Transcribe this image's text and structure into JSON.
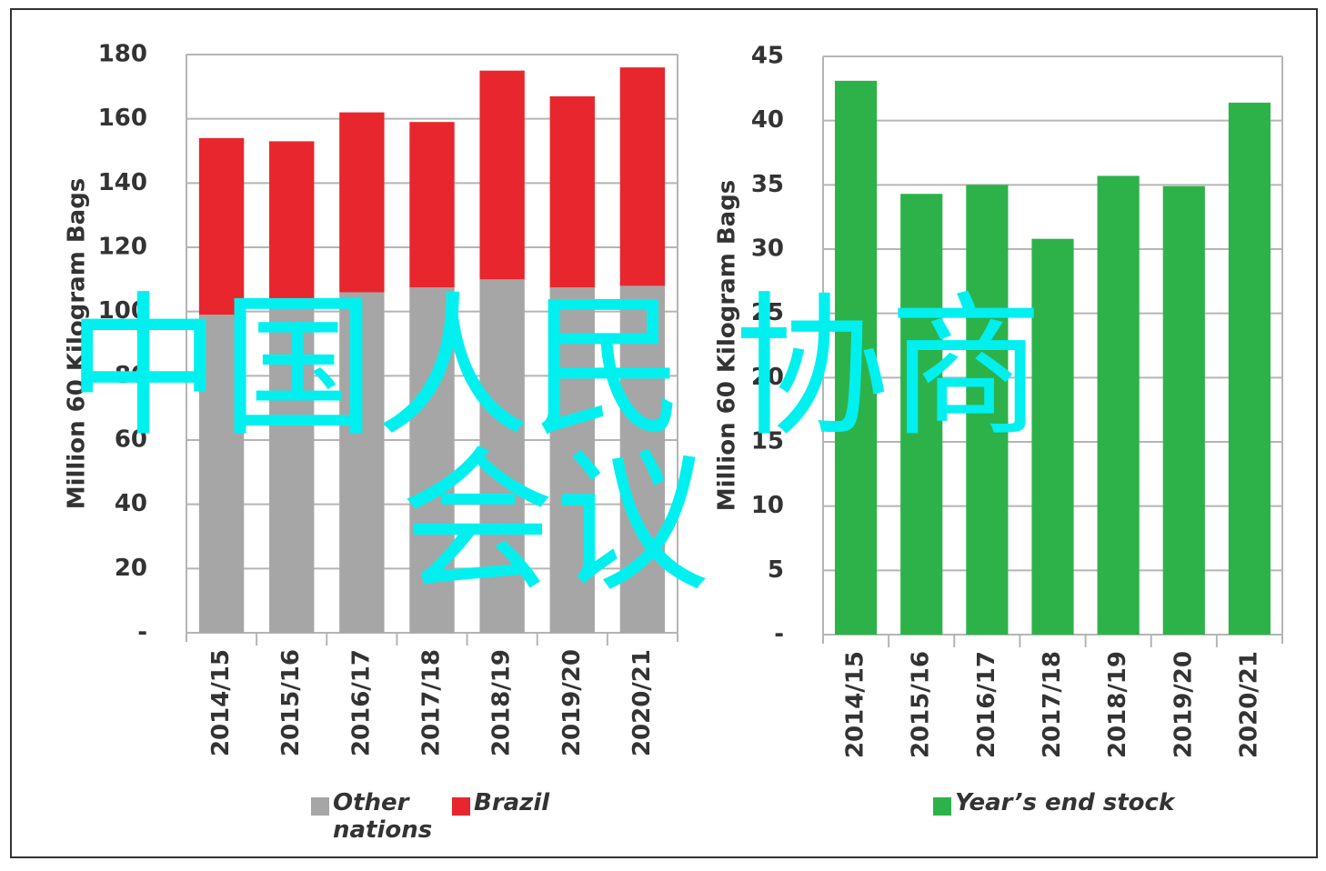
{
  "chart_data": [
    {
      "type": "stacked_bar",
      "ylabel": "Million 60 Kilogram Bags",
      "categories": [
        "2014/15",
        "2015/16",
        "2016/17",
        "2017/18",
        "2018/19",
        "2019/20",
        "2020/21"
      ],
      "series": [
        {
          "name": "Other nations",
          "color": "#a6a6a6",
          "values": [
            99,
            103,
            106,
            107.5,
            110,
            107.5,
            108
          ]
        },
        {
          "name": "Brazil",
          "color": "#e8262d",
          "values": [
            55,
            50,
            56,
            51.5,
            65,
            59.5,
            68
          ]
        }
      ],
      "ylim": [
        0,
        180
      ],
      "yticks": [
        {
          "value": 0,
          "label": "-"
        },
        20,
        40,
        60,
        80,
        100,
        120,
        140,
        160,
        180
      ],
      "grid": true
    },
    {
      "type": "bar",
      "ylabel": "Million 60 Kilogram Bags",
      "categories": [
        "2014/15",
        "2015/16",
        "2016/17",
        "2017/18",
        "2018/19",
        "2019/20",
        "2020/21"
      ],
      "series": [
        {
          "name": "Year’s end stock",
          "color": "#2db24a",
          "values": [
            43.1,
            34.3,
            35.0,
            30.8,
            35.7,
            34.9,
            41.4
          ]
        }
      ],
      "ylim": [
        0,
        45
      ],
      "yticks": [
        {
          "value": 0,
          "label": "-"
        },
        5,
        10,
        15,
        20,
        25,
        30,
        35,
        40,
        45
      ],
      "grid": true
    }
  ],
  "watermark": "中国人民 协商会议"
}
